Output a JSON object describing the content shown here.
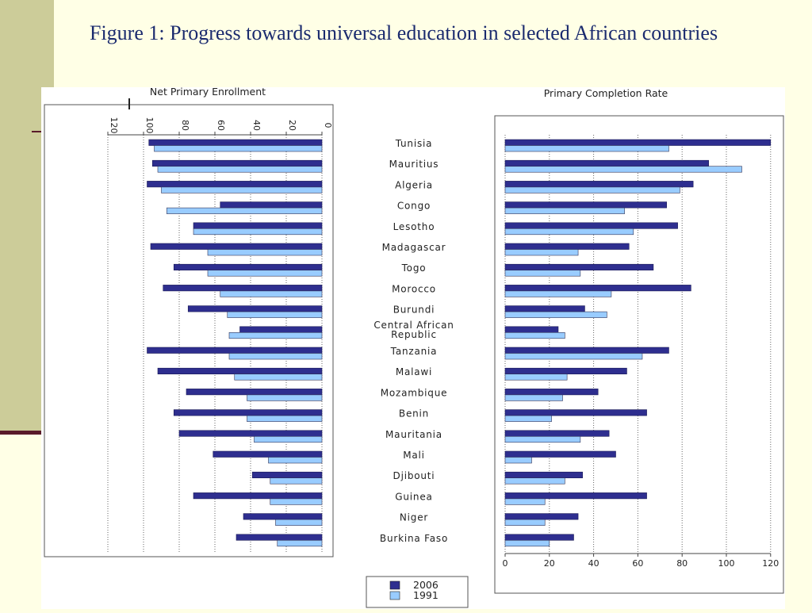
{
  "slide": {
    "title": "Figure 1: Progress towards universal education in selected African countries"
  },
  "colors": {
    "background": "#ffffe6",
    "band": "#cccc99",
    "accent_rule": "#5a1a2a",
    "title_text": "#1a2a6e",
    "series_2006": "#2e2e8f",
    "series_1991": "#99ccff"
  },
  "chart_data": [
    {
      "type": "bar",
      "orientation": "horizontal",
      "direction": "right-to-left",
      "title": "Net Primary Enrollment",
      "xlim": [
        0,
        120
      ],
      "xticks": [
        0,
        20,
        40,
        60,
        80,
        100,
        120
      ],
      "grid": "vertical dotted",
      "categories": [
        "Tunisia",
        "Mauritius",
        "Algeria",
        "Congo",
        "Lesotho",
        "Madagascar",
        "Togo",
        "Morocco",
        "Burundi",
        "Central African Republic",
        "Tanzania",
        "Malawi",
        "Mozambique",
        "Benin",
        "Mauritania",
        "Mali",
        "Djibouti",
        "Guinea",
        "Niger",
        "Burkina Faso"
      ],
      "series": [
        {
          "name": "2006",
          "values": [
            97,
            95,
            98,
            57,
            72,
            96,
            83,
            89,
            75,
            46,
            98,
            92,
            76,
            83,
            80,
            61,
            39,
            72,
            44,
            48
          ]
        },
        {
          "name": "1991",
          "values": [
            94,
            92,
            90,
            87,
            72,
            64,
            64,
            57,
            53,
            52,
            52,
            49,
            42,
            42,
            38,
            30,
            29,
            29,
            26,
            25
          ]
        }
      ]
    },
    {
      "type": "bar",
      "orientation": "horizontal",
      "title": "Primary Completion Rate",
      "xlim": [
        0,
        120
      ],
      "xticks": [
        0,
        20,
        40,
        60,
        80,
        100,
        120
      ],
      "grid": "vertical dotted",
      "categories": [
        "Tunisia",
        "Mauritius",
        "Algeria",
        "Congo",
        "Lesotho",
        "Madagascar",
        "Togo",
        "Morocco",
        "Burundi",
        "Central African Republic",
        "Tanzania",
        "Malawi",
        "Mozambique",
        "Benin",
        "Mauritania",
        "Mali",
        "Djibouti",
        "Guinea",
        "Niger",
        "Burkina Faso"
      ],
      "series": [
        {
          "name": "2006",
          "values": [
            120,
            92,
            85,
            73,
            78,
            56,
            67,
            84,
            36,
            24,
            74,
            55,
            42,
            64,
            47,
            50,
            35,
            64,
            33,
            31
          ]
        },
        {
          "name": "1991",
          "values": [
            74,
            107,
            79,
            54,
            58,
            33,
            34,
            48,
            46,
            27,
            62,
            28,
            26,
            21,
            34,
            12,
            27,
            18,
            18,
            20
          ]
        }
      ]
    }
  ],
  "legend": {
    "entries": [
      "2006",
      "1991"
    ],
    "placement": "bottom-center"
  }
}
